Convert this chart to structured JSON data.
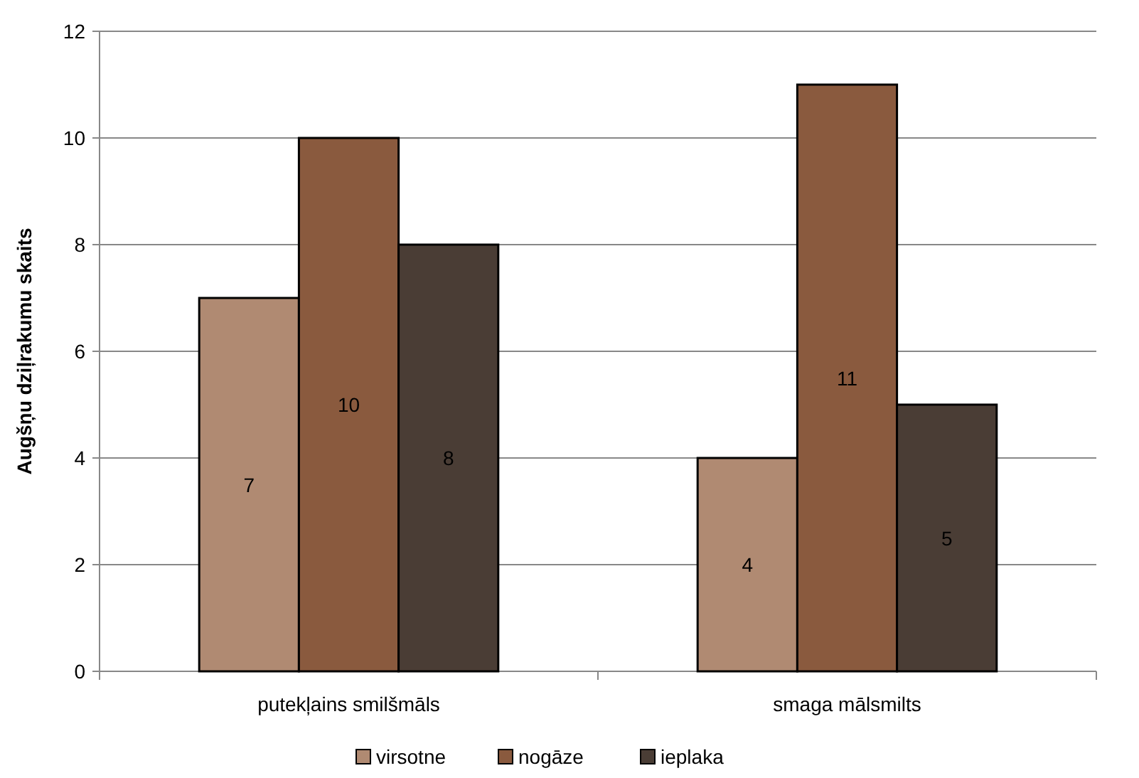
{
  "chart_data": {
    "type": "bar",
    "ylabel": "Augšņu dziļrakumu skaits",
    "categories": [
      "putekļains smilšmāls",
      "smaga mālsmilts"
    ],
    "series": [
      {
        "name": "virsotne",
        "color": "#b08a72",
        "values": [
          7,
          4
        ]
      },
      {
        "name": "nogāze",
        "color": "#8a5a3e",
        "values": [
          10,
          11
        ]
      },
      {
        "name": "ieplaka",
        "color": "#4a3d35",
        "values": [
          8,
          5
        ]
      }
    ],
    "ylim": [
      0,
      12
    ],
    "yticks": [
      0,
      2,
      4,
      6,
      8,
      10,
      12
    ],
    "grid": "y",
    "legend": "bottom",
    "data_labels": true
  }
}
